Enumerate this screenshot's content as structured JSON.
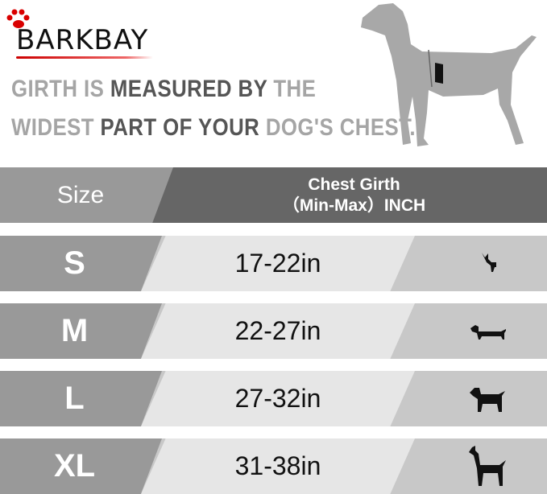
{
  "brand": {
    "logo_text": "BARKBAY",
    "accent": "#d90000"
  },
  "headline": {
    "line1": [
      {
        "text": "GIRTH IS ",
        "tone": "light"
      },
      {
        "text": "MEASURED BY ",
        "tone": "dark"
      },
      {
        "text": "THE",
        "tone": "light"
      }
    ],
    "line2": [
      {
        "text": "WIDEST ",
        "tone": "light"
      },
      {
        "text": "PART OF YOUR ",
        "tone": "dark"
      },
      {
        "text": "DOG'S CHEST.",
        "tone": "light"
      }
    ]
  },
  "table": {
    "headers": {
      "size": "Size",
      "girth_line1": "Chest Girth",
      "girth_line2": "（Min-Max）INCH"
    },
    "rows": [
      {
        "size": "S",
        "girth": "17-22in",
        "icon": "chihuahua-icon"
      },
      {
        "size": "M",
        "girth": "22-27in",
        "icon": "dachshund-icon"
      },
      {
        "size": "L",
        "girth": "27-32in",
        "icon": "labrador-icon"
      },
      {
        "size": "XL",
        "girth": "31-38in",
        "icon": "great-dane-icon"
      }
    ]
  }
}
